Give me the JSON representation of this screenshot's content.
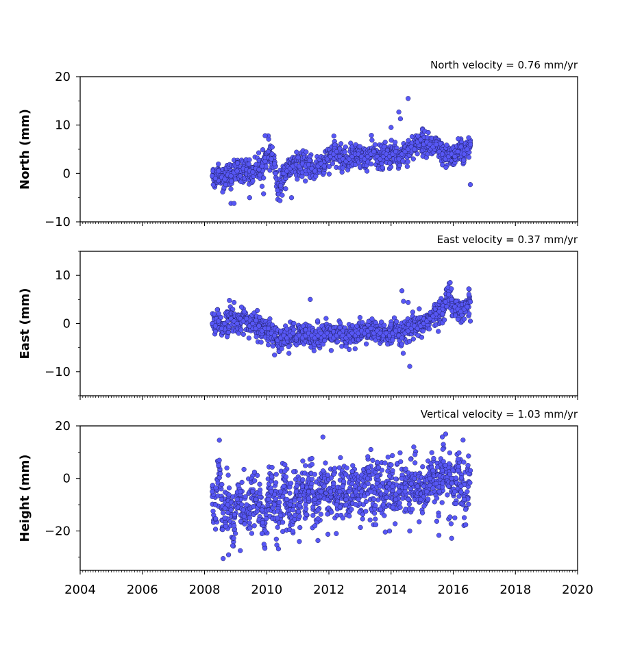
{
  "chart_data": [
    {
      "type": "scatter",
      "title": "North velocity = 0.76 mm/yr",
      "xlabel": "",
      "ylabel": "North (mm)",
      "xlim": [
        2004,
        2020
      ],
      "ylim": [
        -10,
        20
      ],
      "y_ticks": [
        -10,
        0,
        10,
        20
      ],
      "x_tick_labels_shown": false,
      "marker_color": "#5757f5",
      "series": [
        {
          "x": [
            2008.25,
            2008.35,
            2008.45,
            2008.55,
            2008.65,
            2008.75,
            2008.85,
            2008.95,
            2009.05,
            2009.15,
            2009.25,
            2009.35,
            2009.45,
            2009.55,
            2009.65,
            2009.75,
            2009.85,
            2009.95,
            2010.05,
            2010.15,
            2010.25,
            2010.35,
            2010.45,
            2010.55,
            2010.65,
            2010.75,
            2010.85,
            2010.95,
            2011.05,
            2011.15,
            2011.25,
            2011.35,
            2011.45,
            2011.55,
            2011.65,
            2011.75,
            2011.85,
            2011.95,
            2012.05,
            2012.15,
            2012.25,
            2012.35,
            2012.45,
            2012.55,
            2012.65,
            2012.75,
            2012.85,
            2012.95,
            2013.05,
            2013.15,
            2013.25,
            2013.35,
            2013.45,
            2013.55,
            2013.65,
            2013.75,
            2013.85,
            2013.95,
            2014.05,
            2014.15,
            2014.25,
            2014.35,
            2014.45,
            2014.55,
            2014.65,
            2014.75,
            2014.85,
            2014.95,
            2015.05,
            2015.15,
            2015.25,
            2015.35,
            2015.45,
            2015.55,
            2015.65,
            2015.75,
            2015.85,
            2015.95,
            2016.05,
            2016.15,
            2016.25,
            2016.35,
            2016.45,
            2016.55,
            2008.85,
            2008.95,
            2009.45,
            2009.95,
            2009.9,
            2010.5,
            2010.8,
            2014.0,
            2014.25,
            2014.3,
            2014.55,
            2016.55
          ],
          "y": [
            -0.5,
            -1.0,
            0.5,
            -0.8,
            -1.2,
            -0.3,
            -0.5,
            0.2,
            0.5,
            -0.5,
            1.0,
            0.8,
            0.5,
            0.3,
            1.0,
            0.8,
            1.5,
            2.5,
            4.5,
            3.0,
            2.0,
            -3.5,
            -2.5,
            0.0,
            0.5,
            1.0,
            1.5,
            1.8,
            1.5,
            2.0,
            1.5,
            1.8,
            1.0,
            0.5,
            1.5,
            2.0,
            1.5,
            3.0,
            3.5,
            4.0,
            4.5,
            3.5,
            3.0,
            2.5,
            3.0,
            3.5,
            4.0,
            4.0,
            3.5,
            3.0,
            3.5,
            4.0,
            4.5,
            3.5,
            3.0,
            3.5,
            4.0,
            3.5,
            4.0,
            4.5,
            3.0,
            4.0,
            4.5,
            5.0,
            5.5,
            5.0,
            6.5,
            7.0,
            6.0,
            6.5,
            6.0,
            5.5,
            6.0,
            4.5,
            4.0,
            3.0,
            3.5,
            4.0,
            3.5,
            4.5,
            5.5,
            4.0,
            5.0,
            6.0,
            -6.2,
            -6.2,
            -5.0,
            7.8,
            -4.2,
            -4.5,
            -5.0,
            9.5,
            12.7,
            11.3,
            15.5,
            -2.3
          ]
        }
      ]
    },
    {
      "type": "scatter",
      "title": "East velocity = 0.37 mm/yr",
      "xlabel": "",
      "ylabel": "East (mm)",
      "xlim": [
        2004,
        2020
      ],
      "ylim": [
        -15,
        15
      ],
      "y_ticks": [
        -10,
        0,
        10
      ],
      "x_tick_labels_shown": false,
      "marker_color": "#5757f5",
      "series": [
        {
          "x": [
            2008.25,
            2008.35,
            2008.45,
            2008.55,
            2008.65,
            2008.75,
            2008.85,
            2008.95,
            2009.05,
            2009.15,
            2009.25,
            2009.35,
            2009.45,
            2009.55,
            2009.65,
            2009.75,
            2009.85,
            2009.95,
            2010.05,
            2010.15,
            2010.25,
            2010.35,
            2010.45,
            2010.55,
            2010.65,
            2010.75,
            2010.85,
            2010.95,
            2011.05,
            2011.15,
            2011.25,
            2011.35,
            2011.45,
            2011.55,
            2011.65,
            2011.75,
            2011.85,
            2011.95,
            2012.05,
            2012.15,
            2012.25,
            2012.35,
            2012.45,
            2012.55,
            2012.65,
            2012.75,
            2012.85,
            2012.95,
            2013.05,
            2013.15,
            2013.25,
            2013.35,
            2013.45,
            2013.55,
            2013.65,
            2013.75,
            2013.85,
            2013.95,
            2014.05,
            2014.15,
            2014.25,
            2014.35,
            2014.45,
            2014.55,
            2014.65,
            2014.75,
            2014.85,
            2014.95,
            2015.05,
            2015.15,
            2015.25,
            2015.35,
            2015.45,
            2015.55,
            2015.65,
            2015.75,
            2015.85,
            2015.95,
            2016.05,
            2016.15,
            2016.25,
            2016.35,
            2016.45,
            2016.55,
            2008.8,
            2008.95,
            2009.7,
            2011.4,
            2014.35,
            2014.4,
            2014.55,
            2014.6,
            2015.9,
            2016.5,
            2016.55
          ],
          "y": [
            0.0,
            -0.5,
            0.5,
            -1.0,
            0.0,
            0.5,
            1.0,
            0.5,
            0.0,
            1.0,
            0.5,
            1.0,
            -0.5,
            0.0,
            -1.0,
            -0.5,
            -1.5,
            -1.0,
            -1.0,
            -2.0,
            -2.5,
            -3.5,
            -3.0,
            -2.5,
            -3.0,
            -2.5,
            -2.0,
            -3.0,
            -2.5,
            -3.0,
            -2.5,
            -2.0,
            -2.5,
            -3.0,
            -2.5,
            -2.0,
            -2.5,
            -2.0,
            -2.5,
            -3.0,
            -2.5,
            -2.0,
            -2.5,
            -3.0,
            -2.5,
            -2.0,
            -2.5,
            -2.0,
            -1.5,
            -2.0,
            -1.5,
            -1.0,
            -2.0,
            -1.5,
            -2.0,
            -2.5,
            -2.0,
            -2.5,
            -2.0,
            -1.5,
            -2.5,
            -3.0,
            -2.0,
            -1.5,
            -1.0,
            -0.5,
            -1.0,
            -0.5,
            0.0,
            0.5,
            1.0,
            1.5,
            2.0,
            2.5,
            2.0,
            4.5,
            6.0,
            5.0,
            3.5,
            3.0,
            2.5,
            3.0,
            3.5,
            4.5,
            4.8,
            4.4,
            2.7,
            5.0,
            6.8,
            4.6,
            4.4,
            -8.9,
            8.5,
            7.2,
            0.5
          ]
        }
      ]
    },
    {
      "type": "scatter",
      "title": "Vertical velocity = 1.03 mm/yr",
      "xlabel": "",
      "ylabel": "Height (mm)",
      "xlim": [
        2004,
        2020
      ],
      "ylim": [
        -35,
        20
      ],
      "y_ticks": [
        -20,
        0,
        20
      ],
      "x_ticks": [
        2004,
        2006,
        2008,
        2010,
        2012,
        2014,
        2016,
        2018,
        2020
      ],
      "x_tick_labels_shown": true,
      "marker_color": "#5757f5",
      "series": [
        {
          "x": [
            2008.25,
            2008.35,
            2008.45,
            2008.55,
            2008.65,
            2008.75,
            2008.85,
            2008.95,
            2009.05,
            2009.15,
            2009.25,
            2009.35,
            2009.45,
            2009.55,
            2009.65,
            2009.75,
            2009.85,
            2009.95,
            2010.05,
            2010.15,
            2010.25,
            2010.35,
            2010.45,
            2010.55,
            2010.65,
            2010.75,
            2010.85,
            2010.95,
            2011.05,
            2011.15,
            2011.25,
            2011.35,
            2011.45,
            2011.55,
            2011.65,
            2011.75,
            2011.85,
            2011.95,
            2012.05,
            2012.15,
            2012.25,
            2012.35,
            2012.45,
            2012.55,
            2012.65,
            2012.75,
            2012.85,
            2012.95,
            2013.05,
            2013.15,
            2013.25,
            2013.35,
            2013.45,
            2013.55,
            2013.65,
            2013.75,
            2013.85,
            2013.95,
            2014.05,
            2014.15,
            2014.25,
            2014.35,
            2014.45,
            2014.55,
            2014.65,
            2014.75,
            2014.85,
            2014.95,
            2015.05,
            2015.15,
            2015.25,
            2015.35,
            2015.45,
            2015.55,
            2015.65,
            2015.75,
            2015.85,
            2015.95,
            2016.05,
            2016.15,
            2016.25,
            2016.35,
            2016.45,
            2016.55,
            2008.6,
            2009.15,
            2009.85,
            2010.45,
            2011.05,
            2011.55,
            2012.55,
            2013.35,
            2013.95,
            2014.6,
            2015.65,
            2015.95,
            2016.05
          ],
          "y": [
            -5,
            -10,
            5,
            -8,
            -15,
            -10,
            -12,
            -18,
            -8,
            -5,
            -12,
            -10,
            -15,
            -5,
            -8,
            -10,
            -12,
            -20,
            -8,
            -5,
            -10,
            -15,
            -5,
            -3,
            -8,
            -10,
            -12,
            -5,
            -8,
            -3,
            -10,
            -5,
            -2,
            -8,
            -12,
            -5,
            -3,
            -8,
            -5,
            -2,
            -10,
            -5,
            -3,
            -8,
            -5,
            -2,
            -3,
            -8,
            -5,
            -3,
            0,
            -5,
            -8,
            -2,
            -3,
            -10,
            -5,
            -2,
            -3,
            -8,
            -5,
            0,
            -5,
            -8,
            -2,
            0,
            -3,
            -8,
            -3,
            -5,
            0,
            3,
            -2,
            -5,
            3,
            5,
            -3,
            0,
            -5,
            3,
            -3,
            -8,
            -5,
            3,
            -30.5,
            -27.5,
            -21,
            -14,
            -24,
            -18,
            -10,
            11,
            -20,
            -20,
            15.8,
            -22.8,
            -15
          ]
        }
      ]
    }
  ]
}
